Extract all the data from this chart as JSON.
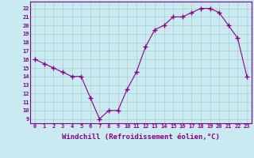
{
  "x": [
    0,
    1,
    2,
    3,
    4,
    5,
    6,
    7,
    8,
    9,
    10,
    11,
    12,
    13,
    14,
    15,
    16,
    17,
    18,
    19,
    20,
    21,
    22,
    23
  ],
  "y": [
    16,
    15.5,
    15,
    14.5,
    14,
    14,
    11.5,
    9,
    10,
    10,
    12.5,
    14.5,
    17.5,
    19.5,
    20,
    21,
    21,
    21.5,
    22,
    22,
    21.5,
    20,
    18.5,
    14
  ],
  "line_color": "#880088",
  "marker": "+",
  "marker_size": 4,
  "bg_color": "#c8eaf0",
  "grid_color": "#aacccc",
  "xlabel": "Windchill (Refroidissement éolien,°C)",
  "xlabel_fontsize": 6.5,
  "ylabel_values": [
    9,
    10,
    11,
    12,
    13,
    14,
    15,
    16,
    17,
    18,
    19,
    20,
    21,
    22
  ],
  "ylim": [
    8.5,
    22.8
  ],
  "xlim": [
    -0.5,
    23.5
  ],
  "xtick_labels": [
    "0",
    "1",
    "2",
    "3",
    "4",
    "5",
    "6",
    "7",
    "8",
    "9",
    "10",
    "11",
    "12",
    "13",
    "14",
    "15",
    "16",
    "17",
    "18",
    "19",
    "20",
    "21",
    "22",
    "23"
  ]
}
